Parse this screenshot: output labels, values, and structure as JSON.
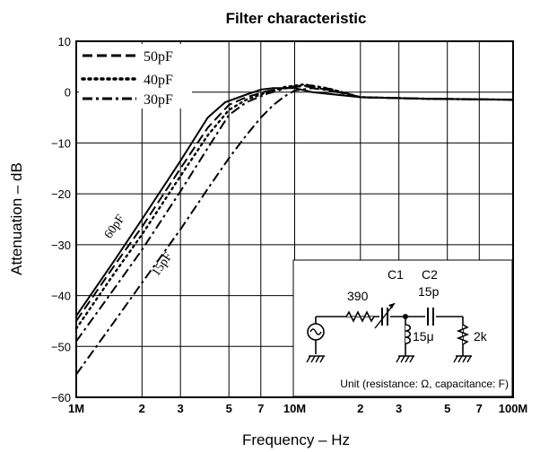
{
  "chart_data": {
    "type": "line",
    "title": "Filter characteristic",
    "xlabel": "Frequency – Hz",
    "ylabel": "Attenuation – dB",
    "x_scale": "log",
    "xlim": [
      1000000,
      100000000
    ],
    "ylim": [
      -60,
      10
    ],
    "grid": true,
    "legend_position": "top-left",
    "x_ticks": [
      {
        "value": 1000000,
        "label": "1M"
      },
      {
        "value": 2000000,
        "label": "2"
      },
      {
        "value": 3000000,
        "label": "3"
      },
      {
        "value": 5000000,
        "label": "5"
      },
      {
        "value": 7000000,
        "label": "7"
      },
      {
        "value": 10000000,
        "label": "10M"
      },
      {
        "value": 20000000,
        "label": "2"
      },
      {
        "value": 30000000,
        "label": "3"
      },
      {
        "value": 50000000,
        "label": "5"
      },
      {
        "value": 70000000,
        "label": "7"
      },
      {
        "value": 100000000,
        "label": "100M"
      }
    ],
    "y_ticks": [
      {
        "value": 10,
        "label": "10"
      },
      {
        "value": 0,
        "label": "0"
      },
      {
        "value": -10,
        "label": "−10"
      },
      {
        "value": -20,
        "label": "−20"
      },
      {
        "value": -30,
        "label": "−30"
      },
      {
        "value": -40,
        "label": "−40"
      },
      {
        "value": -50,
        "label": "−50"
      },
      {
        "value": -60,
        "label": "−60"
      }
    ],
    "series": [
      {
        "name": "60pF",
        "style": "solid",
        "x": [
          1000000,
          1500000,
          2000000,
          3000000,
          4000000,
          4800000,
          6000000,
          7000000,
          8000000,
          10000000,
          12000000,
          20000000,
          40000000,
          100000000
        ],
        "y": [
          -44,
          -33,
          -25,
          -13.5,
          -5,
          -2,
          -0.5,
          0.5,
          0.8,
          0.8,
          0,
          -1,
          -1.3,
          -1.5
        ]
      },
      {
        "name": "50pF",
        "style": "dash",
        "x": [
          1000000,
          1500000,
          2000000,
          3000000,
          4000000,
          5000000,
          6000000,
          7500000,
          9000000,
          11000000,
          14000000,
          20000000,
          40000000,
          100000000
        ],
        "y": [
          -45,
          -34,
          -26.5,
          -15,
          -7,
          -2.5,
          -1,
          0.2,
          0.8,
          1.2,
          0.5,
          -1,
          -1.3,
          -1.5
        ]
      },
      {
        "name": "40pF",
        "style": "dot",
        "x": [
          1000000,
          1500000,
          2000000,
          3000000,
          4000000,
          5000000,
          6000000,
          7500000,
          9000000,
          11000000,
          14000000,
          20000000,
          40000000,
          100000000
        ],
        "y": [
          -46.5,
          -35.5,
          -28,
          -16.5,
          -8.5,
          -3.5,
          -1.5,
          0,
          1,
          1.5,
          0.8,
          -1,
          -1.3,
          -1.5
        ]
      },
      {
        "name": "30pF",
        "style": "dashdot",
        "x": [
          1000000,
          1500000,
          2000000,
          3000000,
          4000000,
          5000000,
          6000000,
          7500000,
          10000000,
          12000000,
          15000000,
          20000000,
          40000000,
          100000000
        ],
        "y": [
          -49,
          -38.5,
          -31,
          -19.5,
          -11,
          -4.5,
          -2,
          -0.3,
          1.2,
          1.3,
          0.5,
          -1,
          -1.3,
          -1.5
        ]
      },
      {
        "name": "15pF",
        "style": "dashdot",
        "x": [
          1000000,
          1500000,
          2000000,
          3000000,
          4000000,
          5000000,
          6000000,
          7000000,
          8000000,
          9000000,
          10000000,
          12000000,
          15000000,
          20000000,
          40000000,
          100000000
        ],
        "y": [
          -55.5,
          -45,
          -37.5,
          -27,
          -19,
          -13,
          -8.5,
          -5,
          -2.5,
          -0.8,
          0.3,
          0.8,
          0.2,
          -1,
          -1.3,
          -1.5
        ]
      }
    ],
    "curve_labels": [
      {
        "text": "60pF",
        "x": 1700000,
        "y": -26
      },
      {
        "text": "15pF",
        "x": 2400000,
        "y": -36
      }
    ],
    "inset": {
      "r1": "390",
      "c1": "C1",
      "c2": "C2",
      "c2_value": "15p",
      "l_value": "15μ",
      "r2": "2k",
      "unit_note": "Unit (resistance: Ω, capacitance: F)"
    }
  }
}
